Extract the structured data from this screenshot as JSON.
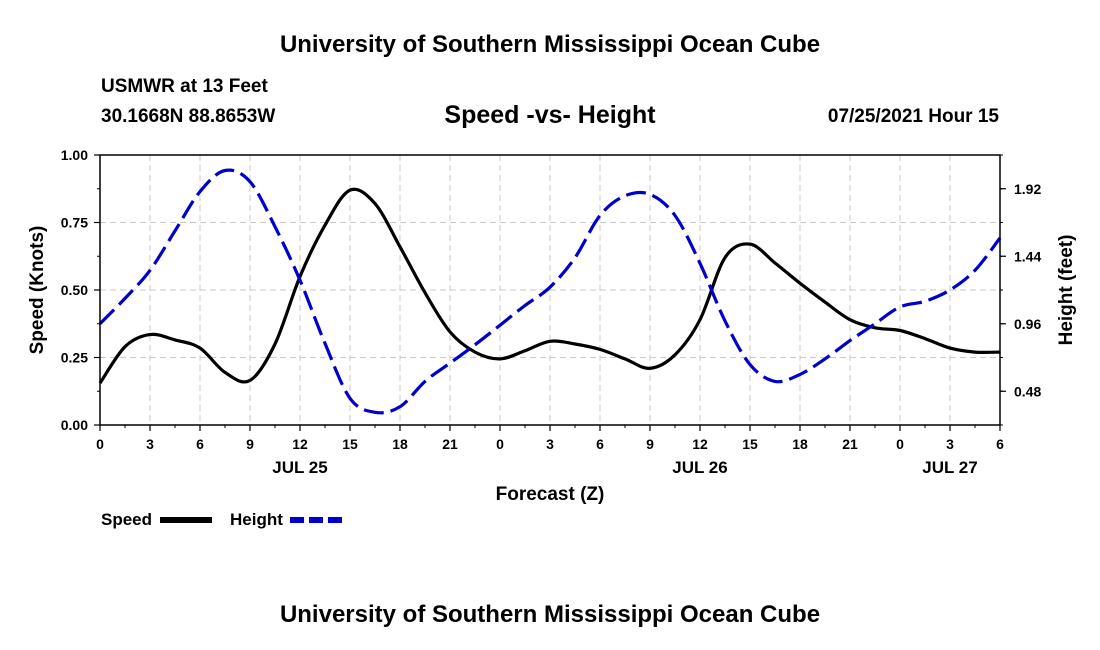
{
  "header": {
    "title": "University of Southern Mississippi Ocean Cube",
    "station": "USMWR at 13 Feet",
    "coords": "30.1668N  88.8653W",
    "chart_title": "Speed -vs- Height",
    "datetime": "07/25/2021 Hour 15"
  },
  "footer": {
    "title": "University of Southern Mississippi Ocean Cube"
  },
  "colors": {
    "speed": "#000000",
    "height": "#0000cc",
    "grid": "#c8c8c8"
  },
  "chart_data": {
    "type": "line",
    "title": "Speed -vs- Height",
    "xlabel": "Forecast (Z)",
    "ylabel": "Speed (Knots)",
    "y2label": "Height (feet)",
    "xlim": [
      0,
      54
    ],
    "ylim": [
      0,
      1.0
    ],
    "y2lim": [
      0.24,
      2.16
    ],
    "x_ticks": [
      0,
      3,
      6,
      9,
      12,
      15,
      18,
      21,
      24,
      27,
      30,
      33,
      36,
      39,
      42,
      45,
      48,
      51,
      54
    ],
    "x_tick_labels": [
      "0",
      "3",
      "6",
      "9",
      "12",
      "15",
      "18",
      "21",
      "0",
      "3",
      "6",
      "9",
      "12",
      "15",
      "18",
      "21",
      "0",
      "3",
      "6"
    ],
    "y_ticks": [
      0,
      0.25,
      0.5,
      0.75,
      1.0
    ],
    "y_tick_labels": [
      "0.00",
      "0.25",
      "0.50",
      "0.75",
      "1.00"
    ],
    "y2_ticks": [
      0.48,
      0.96,
      1.44,
      1.92
    ],
    "y2_tick_labels": [
      "0.48",
      "0.96",
      "1.44",
      "1.92"
    ],
    "day_labels": [
      {
        "x": 12,
        "label": "JUL 25"
      },
      {
        "x": 36,
        "label": "JUL 26"
      },
      {
        "x": 51,
        "label": "JUL 27"
      }
    ],
    "grid": true,
    "legend": [
      {
        "name": "Speed",
        "style": "solid"
      },
      {
        "name": "Height",
        "style": "dashed"
      }
    ],
    "series": [
      {
        "name": "Speed",
        "axis": "left",
        "x": [
          0,
          1.5,
          3,
          4.5,
          6,
          7.5,
          9,
          10.5,
          12,
          13.5,
          15,
          16.5,
          18,
          19.5,
          21,
          22.5,
          24,
          25.5,
          27,
          28.5,
          30,
          31.5,
          33,
          34.5,
          36,
          37.5,
          39,
          40.5,
          42,
          43.5,
          45,
          46.5,
          48,
          49.5,
          51,
          52.5,
          54
        ],
        "values": [
          0.155,
          0.29,
          0.335,
          0.315,
          0.285,
          0.195,
          0.165,
          0.3,
          0.55,
          0.74,
          0.87,
          0.82,
          0.66,
          0.49,
          0.345,
          0.27,
          0.245,
          0.275,
          0.31,
          0.3,
          0.28,
          0.245,
          0.21,
          0.26,
          0.39,
          0.62,
          0.67,
          0.6,
          0.525,
          0.455,
          0.39,
          0.36,
          0.35,
          0.32,
          0.285,
          0.27,
          0.27
        ]
      },
      {
        "name": "Height",
        "axis": "right",
        "x": [
          0,
          1.5,
          3,
          4.5,
          6,
          7.5,
          9,
          10.5,
          12,
          13.5,
          15,
          16.5,
          18,
          19.5,
          21,
          22.5,
          24,
          25.5,
          27,
          28.5,
          30,
          31.5,
          33,
          34.5,
          36,
          37.5,
          39,
          40.5,
          42,
          43.5,
          45,
          46.5,
          48,
          49.5,
          51,
          52.5,
          54
        ],
        "values": [
          0.96,
          1.14,
          1.34,
          1.62,
          1.9,
          2.05,
          1.97,
          1.65,
          1.27,
          0.82,
          0.43,
          0.33,
          0.37,
          0.55,
          0.68,
          0.81,
          0.95,
          1.09,
          1.22,
          1.43,
          1.73,
          1.87,
          1.88,
          1.73,
          1.39,
          0.98,
          0.67,
          0.55,
          0.6,
          0.71,
          0.84,
          0.96,
          1.08,
          1.12,
          1.2,
          1.34,
          1.57
        ]
      }
    ]
  }
}
